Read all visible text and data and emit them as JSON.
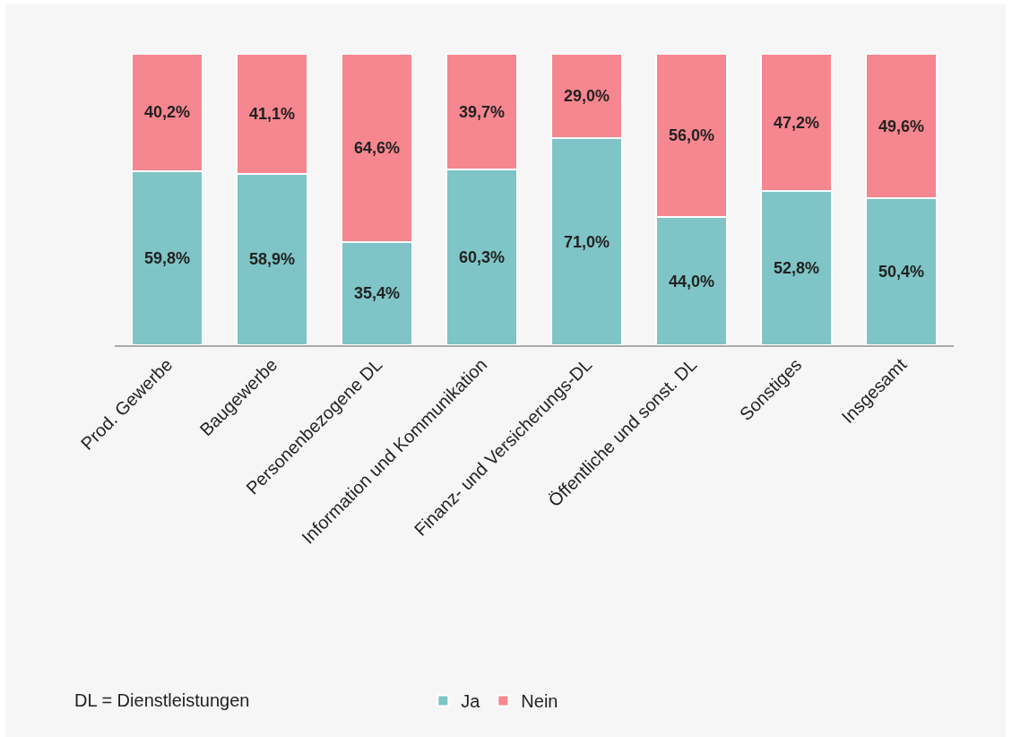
{
  "chart_data": {
    "type": "bar",
    "stacked": true,
    "categories": [
      "Prod. Gewerbe",
      "Baugewerbe",
      "Personenbezogene DL",
      "Information und Kommunikation",
      "Finanz- und Versicherungs-DL",
      "Öffentliche und sonst. DL",
      "Sonstiges",
      "Insgesamt"
    ],
    "series": [
      {
        "name": "Ja",
        "color": "#7fc4c6",
        "values": [
          59.8,
          58.9,
          35.4,
          60.3,
          71.0,
          44.0,
          52.8,
          50.4
        ],
        "value_labels": [
          "59,8%",
          "58,9%",
          "35,4%",
          "60,3%",
          "71,0%",
          "44,0%",
          "52,8%",
          "50,4%"
        ]
      },
      {
        "name": "Nein",
        "color": "#f6868f",
        "values": [
          40.2,
          41.1,
          64.6,
          39.7,
          29.0,
          56.0,
          47.2,
          49.6
        ],
        "value_labels": [
          "40,2%",
          "41,1%",
          "64,6%",
          "39,7%",
          "29,0%",
          "56,0%",
          "47,2%",
          "49,6%"
        ]
      }
    ],
    "annotations": [
      "DL = Dienstleistungen"
    ],
    "legend": "bottom"
  }
}
